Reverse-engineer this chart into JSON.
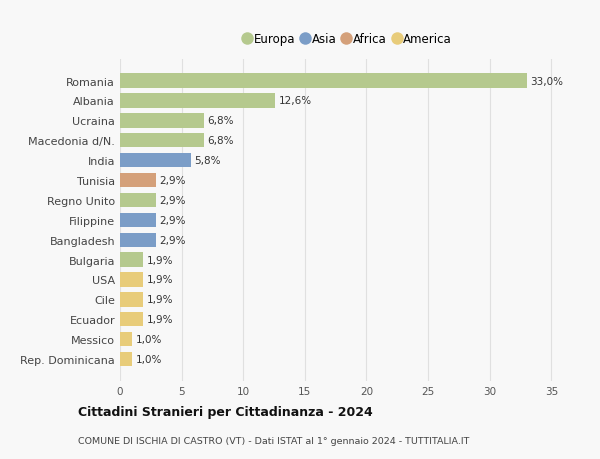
{
  "categories": [
    "Romania",
    "Albania",
    "Ucraina",
    "Macedonia d/N.",
    "India",
    "Tunisia",
    "Regno Unito",
    "Filippine",
    "Bangladesh",
    "Bulgaria",
    "USA",
    "Cile",
    "Ecuador",
    "Messico",
    "Rep. Dominicana"
  ],
  "values": [
    33.0,
    12.6,
    6.8,
    6.8,
    5.8,
    2.9,
    2.9,
    2.9,
    2.9,
    1.9,
    1.9,
    1.9,
    1.9,
    1.0,
    1.0
  ],
  "labels": [
    "33,0%",
    "12,6%",
    "6,8%",
    "6,8%",
    "5,8%",
    "2,9%",
    "2,9%",
    "2,9%",
    "2,9%",
    "1,9%",
    "1,9%",
    "1,9%",
    "1,9%",
    "1,0%",
    "1,0%"
  ],
  "continent": [
    "Europa",
    "Europa",
    "Europa",
    "Europa",
    "Asia",
    "Africa",
    "Europa",
    "Asia",
    "Asia",
    "Europa",
    "America",
    "America",
    "America",
    "America",
    "America"
  ],
  "colors": {
    "Europa": "#b5c98e",
    "Asia": "#7b9dc7",
    "Africa": "#d4a07a",
    "America": "#e8cc7a"
  },
  "legend_order": [
    "Europa",
    "Asia",
    "Africa",
    "America"
  ],
  "title": "Cittadini Stranieri per Cittadinanza - 2024",
  "subtitle": "COMUNE DI ISCHIA DI CASTRO (VT) - Dati ISTAT al 1° gennaio 2024 - TUTTITALIA.IT",
  "xlim": [
    0,
    37
  ],
  "xticks": [
    0,
    5,
    10,
    15,
    20,
    25,
    30,
    35
  ],
  "bg_color": "#f8f8f8",
  "grid_color": "#e0e0e0",
  "bar_height": 0.72
}
